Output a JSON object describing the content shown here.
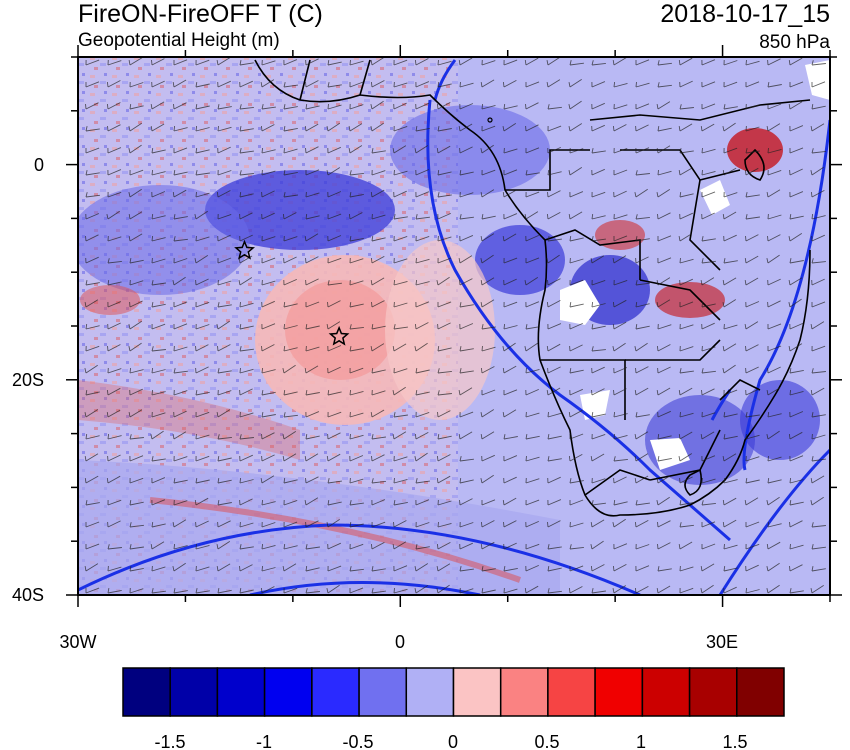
{
  "header": {
    "title_left": "FireON-FireOFF T (C)",
    "subtitle_left": "Geopotential Height (m)",
    "title_right": "2018-10-17_15",
    "subtitle_right": "850 hPa"
  },
  "map": {
    "lon_range": [
      -30,
      40
    ],
    "lat_range": [
      -40,
      10
    ],
    "lon_tick_labels": [
      {
        "lon": -30,
        "label": "30W"
      },
      {
        "lon": 0,
        "label": "0"
      },
      {
        "lon": 30,
        "label": "30E"
      }
    ],
    "lat_tick_labels": [
      {
        "lat": 0,
        "label": "0"
      },
      {
        "lat": -20,
        "label": "20S"
      },
      {
        "lat": -40,
        "label": "40S"
      }
    ],
    "markers": [
      {
        "name": "star-marker-west",
        "lon": -14.5,
        "lat": -8
      },
      {
        "name": "star-marker-center",
        "lon": -5.7,
        "lat": -16
      }
    ]
  },
  "colorbar": {
    "colors": [
      "#00007f",
      "#0000a8",
      "#0000cc",
      "#0000f0",
      "#2a2aff",
      "#7070f0",
      "#b0b0f5",
      "#fbc4c4",
      "#fa8282",
      "#f64444",
      "#f00000",
      "#cc0000",
      "#a80000",
      "#800000"
    ],
    "tick_labels": [
      "-1.5",
      "-1",
      "-0.5",
      "0",
      "0.5",
      "1",
      "1.5"
    ]
  }
}
